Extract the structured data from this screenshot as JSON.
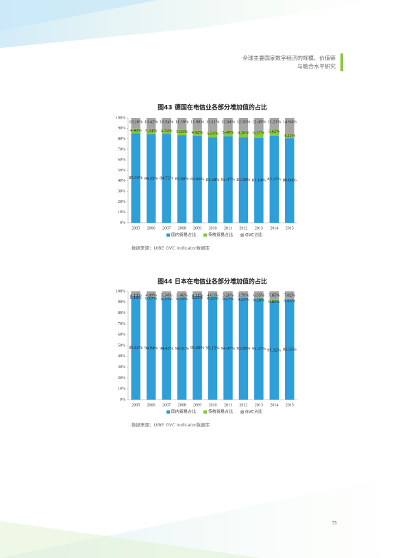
{
  "header": {
    "lines": [
      "全球主要国家数字经济的规模、价值链",
      "与融合水平研究"
    ]
  },
  "chart_data": [
    {
      "type": "bar",
      "stacked": true,
      "title": "图43  德国在电信业各部分增加值的占比",
      "categories": [
        "2005",
        "2006",
        "2007",
        "2008",
        "2009",
        "2010",
        "2011",
        "2012",
        "2013",
        "2014",
        "2015"
      ],
      "series": [
        {
          "name": "国内贸易占比",
          "color": "#2e9fd8",
          "values": [
            85.33,
            84.35,
            84.72,
            83.6,
            83.09,
            81.38,
            82.47,
            81.38,
            81.14,
            83.17,
            80.84
          ],
          "value_labels": [
            "85.33%",
            "84.35%",
            "84.72%",
            "83.60%",
            "83.09%",
            "81.38%",
            "82.47%",
            "81.38%",
            "81.14%",
            "83.17%",
            "80.84%"
          ]
        },
        {
          "name": "传统贸易占比",
          "color": "#8cc63f",
          "values": [
            4.4,
            5.24,
            4.74,
            5.01,
            4.92,
            5.51,
            5.49,
            6.26,
            6.37,
            5.62,
            4.22
          ],
          "value_labels": [
            "4.40%",
            "5.24%",
            "4.74%",
            "5.01%",
            "4.92%",
            "5.51%",
            "5.49%",
            "6.26%",
            "6.37%",
            "5.62%",
            "4.22%"
          ]
        },
        {
          "name": "GVC占比",
          "color": "#a6a6a6",
          "values": [
            10.28,
            10.42,
            10.54,
            11.39,
            11.98,
            13.11,
            12.04,
            12.36,
            12.49,
            11.21,
            14.94
          ],
          "value_labels": [
            "10.28%",
            "10.42%",
            "10.54%",
            "11.39%",
            "11.98%",
            "13.11%",
            "12.04%",
            "12.36%",
            "12.49%",
            "11.21%",
            "14.94%"
          ]
        }
      ],
      "ylim": [
        0,
        100
      ],
      "yticks": [
        {
          "value": 0,
          "label": "0%"
        },
        {
          "value": 10,
          "label": "10%"
        },
        {
          "value": 20,
          "label": "20%"
        },
        {
          "value": 30,
          "label": "30%"
        },
        {
          "value": 40,
          "label": "40%"
        },
        {
          "value": 50,
          "label": "50%"
        },
        {
          "value": 60,
          "label": "60%"
        },
        {
          "value": 70,
          "label": "70%"
        },
        {
          "value": 80,
          "label": "80%"
        },
        {
          "value": 90,
          "label": "90%"
        },
        {
          "value": 100,
          "label": "100%"
        }
      ],
      "source": "数据来源：UIBE GVC Indicator数据库"
    },
    {
      "type": "bar",
      "stacked": true,
      "title": "图44  日本在电信业各部分增加值的占比",
      "categories": [
        "2005",
        "2006",
        "2007",
        "2008",
        "2009",
        "2010",
        "2011",
        "2012",
        "2013",
        "2014",
        "2015"
      ],
      "series": [
        {
          "name": "国内贸易占比",
          "color": "#2e9fd8",
          "values": [
            95.62,
            94.94,
            94.43,
            94.31,
            95.68,
            95.15,
            94.47,
            93.98,
            93.37,
            91.32,
            92.35
          ],
          "value_labels": [
            "95.62%",
            "94.94%",
            "94.43%",
            "94.31%",
            "95.68%",
            "95.15%",
            "94.47%",
            "93.98%",
            "93.37%",
            "91.32%",
            "92.35%"
          ]
        },
        {
          "name": "传统贸易占比",
          "color": "#8cc63f",
          "values": [
            0.18,
            0.17,
            0.23,
            0.23,
            0.21,
            0.22,
            0.27,
            0.23,
            0.28,
            0.83,
            0.63
          ],
          "value_labels": [
            "0.18%",
            "0.17%",
            "0.23%",
            "0.23%",
            "0.21%",
            "0.22%",
            "0.27%",
            "0.23%",
            "0.28%",
            "0.83%",
            "0.63%"
          ]
        },
        {
          "name": "GVC占比",
          "color": "#a6a6a6",
          "values": [
            4.19,
            4.89,
            5.34,
            5.46,
            4.11,
            4.63,
            5.26,
            5.79,
            6.35,
            7.85,
            7.02
          ],
          "value_labels": [
            "4.19%",
            "4.89%",
            "5.34%",
            "5.46%",
            "4.11%",
            "4.63%",
            "5.26%",
            "5.79%",
            "6.35%",
            "7.85%",
            "7.02%"
          ]
        }
      ],
      "ylim": [
        0,
        100
      ],
      "yticks": [
        {
          "value": 0,
          "label": "0%"
        },
        {
          "value": 10,
          "label": "10%"
        },
        {
          "value": 20,
          "label": "20%"
        },
        {
          "value": 30,
          "label": "30%"
        },
        {
          "value": 40,
          "label": "40%"
        },
        {
          "value": 50,
          "label": "50%"
        },
        {
          "value": 60,
          "label": "60%"
        },
        {
          "value": 70,
          "label": "70%"
        },
        {
          "value": 80,
          "label": "80%"
        },
        {
          "value": 90,
          "label": "90%"
        },
        {
          "value": 100,
          "label": "100%"
        }
      ],
      "source": "数据来源：UIBE GVC Indicator数据库"
    }
  ],
  "page_number": "35"
}
